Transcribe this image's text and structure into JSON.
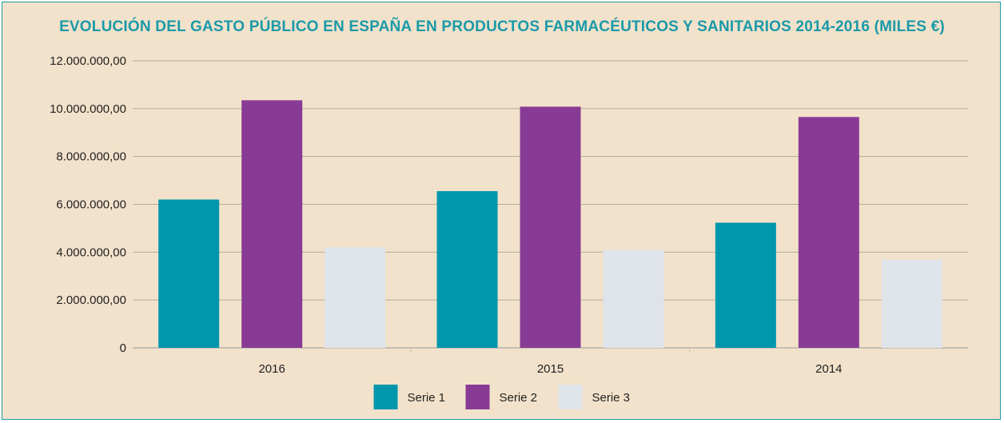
{
  "chart_data": {
    "type": "bar",
    "title": "EVOLUCIÓN DEL GASTO PÚBLICO EN ESPAÑA EN PRODUCTOS FARMACÉUTICOS Y SANITARIOS 2014-2016 (MILES €)",
    "categories": [
      "2016",
      "2015",
      "2014"
    ],
    "series": [
      {
        "name": "Serie 1",
        "color": "#0097ad",
        "values": [
          6200000,
          6550000,
          5230000
        ]
      },
      {
        "name": "Serie 2",
        "color": "#883b95",
        "values": [
          10350000,
          10080000,
          9650000
        ]
      },
      {
        "name": "Serie 3",
        "color": "#dfe3ea",
        "values": [
          4200000,
          4100000,
          3680000
        ]
      }
    ],
    "ylim": [
      0,
      12000000
    ],
    "yticks": [
      {
        "value": 0,
        "label": "0"
      },
      {
        "value": 2000000,
        "label": "2.000.000,00"
      },
      {
        "value": 4000000,
        "label": "4.000.000,00"
      },
      {
        "value": 6000000,
        "label": "6.000.000,00"
      },
      {
        "value": 8000000,
        "label": "8.000.000,00"
      },
      {
        "value": 10000000,
        "label": "10.000.000,00"
      },
      {
        "value": 12000000,
        "label": "12.000.000,00"
      }
    ],
    "grid": true,
    "legend": "bottom",
    "xlabel": "",
    "ylabel": ""
  }
}
